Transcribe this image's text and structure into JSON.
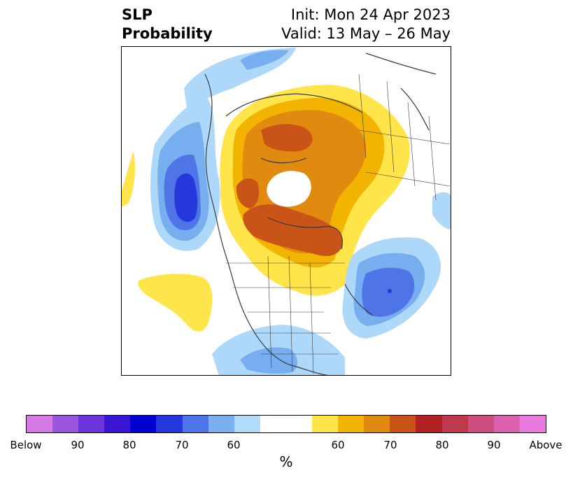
{
  "header": {
    "title_line1": "SLP",
    "title_line2": "Probability",
    "init": "Init: Mon 24 Apr 2023",
    "valid": "Valid: 13 May – 26 May"
  },
  "colorbar": {
    "unit": "%",
    "colors": [
      "#d67ae6",
      "#9c55e0",
      "#6b35d9",
      "#3b16d4",
      "#0000d0",
      "#2438dc",
      "#4d74e8",
      "#7ab0f0",
      "#b0dcfa",
      "#ffffff",
      "#ffe44a",
      "#f2b400",
      "#e08a10",
      "#c85418",
      "#b22222",
      "#c0384c",
      "#cc4f80",
      "#db62b0",
      "#e87ae0"
    ],
    "tick_labels": [
      "Below",
      "90",
      "80",
      "70",
      "60",
      "60",
      "70",
      "80",
      "90",
      "Above"
    ]
  },
  "map": {
    "palette": {
      "blue_light": "#aed8fa",
      "blue_mid": "#76aef0",
      "blue_dark": "#4e74e6",
      "blue_deep": "#2438dc",
      "yellow": "#ffe44a",
      "gold": "#f2b400",
      "orange": "#e08a10",
      "rust": "#c85418",
      "border": "#3a3a3a"
    }
  }
}
